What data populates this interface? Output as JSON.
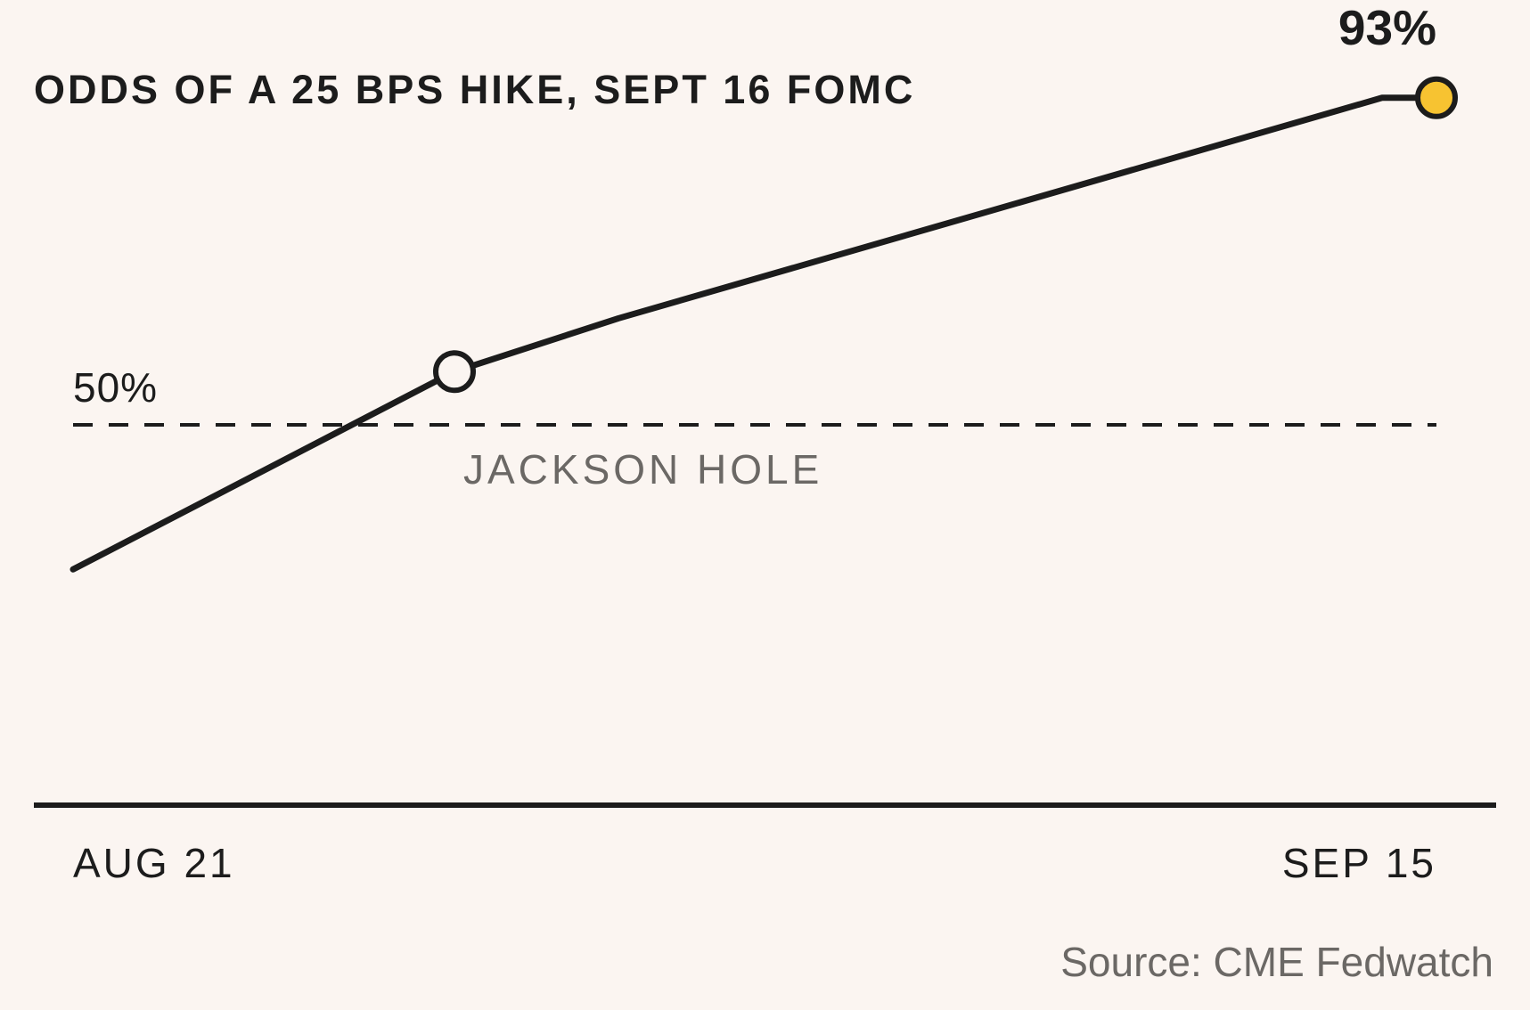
{
  "chart_data": {
    "type": "line",
    "title": "ODDS OF A 25 BPS HIKE, SEPT 16 FOMC",
    "x": [
      "Aug 21",
      "Aug 31",
      "Sep 3",
      "Sep 14",
      "Sep 15"
    ],
    "values": [
      31,
      57,
      64,
      93,
      93
    ],
    "unit": "%",
    "ylim": [
      0,
      100
    ],
    "x_tick_labels": [
      "AUG 21",
      "SEP 15"
    ],
    "reference_line": {
      "value": 50,
      "label": "50%",
      "style": "dashed"
    },
    "annotations": [
      {
        "x": "Aug 31",
        "label": "JACKSON HOLE",
        "marker": "open-circle"
      },
      {
        "x": "Sep 15",
        "label": "93%",
        "marker": "filled-circle"
      }
    ],
    "grid": false,
    "legend": "none",
    "source": "Source: CME Fedwatch"
  },
  "colors": {
    "background": "#fbf5f1",
    "line": "#1c1c1c",
    "highlight_marker": "#f7c331",
    "annotation_text": "#6b6865"
  }
}
